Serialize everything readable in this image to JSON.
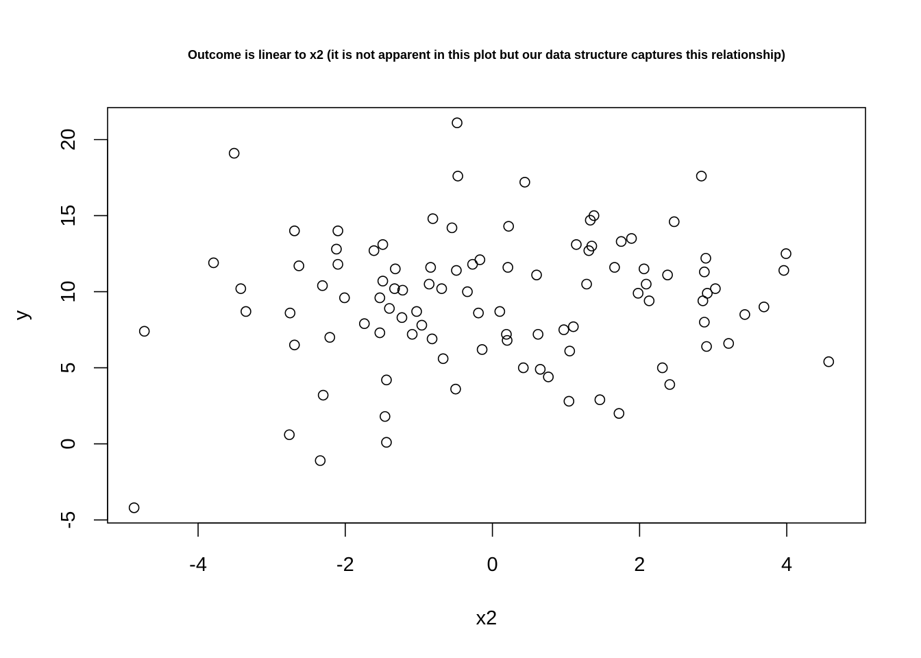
{
  "chart_data": {
    "type": "scatter",
    "title": "Outcome is linear to x2 (it is not apparent in this plot but our data structure captures this relationship)",
    "xlabel": "x2",
    "ylabel": "y",
    "xlim": [
      -5.23,
      5.07
    ],
    "ylim": [
      -5.2,
      22.1
    ],
    "xticks": [
      -4,
      -2,
      0,
      2,
      4
    ],
    "yticks": [
      -5,
      0,
      5,
      10,
      15,
      20
    ],
    "xtick_labels": [
      "-4",
      "-2",
      "0",
      "2",
      "4"
    ],
    "ytick_labels": [
      "-5",
      "0",
      "5",
      "10",
      "15",
      "20"
    ],
    "grid": false,
    "marker": "open-circle",
    "points": [
      [
        -4.87,
        -4.2
      ],
      [
        -4.73,
        7.4
      ],
      [
        -3.79,
        11.9
      ],
      [
        -3.51,
        19.1
      ],
      [
        -3.42,
        10.2
      ],
      [
        -3.35,
        8.7
      ],
      [
        -2.75,
        8.6
      ],
      [
        -2.76,
        0.6
      ],
      [
        -2.69,
        14.0
      ],
      [
        -2.69,
        6.5
      ],
      [
        -2.63,
        11.7
      ],
      [
        -2.31,
        10.4
      ],
      [
        -2.3,
        3.2
      ],
      [
        -2.34,
        -1.1
      ],
      [
        -2.21,
        7.0
      ],
      [
        -2.12,
        12.8
      ],
      [
        -2.1,
        14.0
      ],
      [
        -2.1,
        11.8
      ],
      [
        -2.01,
        9.6
      ],
      [
        -1.74,
        7.9
      ],
      [
        -1.61,
        12.7
      ],
      [
        -1.53,
        9.6
      ],
      [
        -1.53,
        7.3
      ],
      [
        -1.49,
        13.1
      ],
      [
        -1.49,
        10.7
      ],
      [
        -1.46,
        1.8
      ],
      [
        -1.44,
        4.2
      ],
      [
        -1.44,
        0.1
      ],
      [
        -1.4,
        8.9
      ],
      [
        -1.33,
        10.2
      ],
      [
        -1.32,
        11.5
      ],
      [
        -1.23,
        8.3
      ],
      [
        -1.22,
        10.1
      ],
      [
        -1.09,
        7.2
      ],
      [
        -1.03,
        8.7
      ],
      [
        -0.96,
        7.8
      ],
      [
        -0.86,
        10.5
      ],
      [
        -0.84,
        11.6
      ],
      [
        -0.82,
        6.9
      ],
      [
        -0.81,
        14.8
      ],
      [
        -0.69,
        10.2
      ],
      [
        -0.67,
        5.6
      ],
      [
        -0.55,
        14.2
      ],
      [
        -0.5,
        3.6
      ],
      [
        -0.49,
        11.4
      ],
      [
        -0.48,
        21.1
      ],
      [
        -0.47,
        17.6
      ],
      [
        -0.34,
        10.0
      ],
      [
        -0.27,
        11.8
      ],
      [
        -0.19,
        8.6
      ],
      [
        -0.17,
        12.1
      ],
      [
        -0.14,
        6.2
      ],
      [
        0.1,
        8.7
      ],
      [
        0.19,
        7.2
      ],
      [
        0.2,
        6.8
      ],
      [
        0.21,
        11.6
      ],
      [
        0.22,
        14.3
      ],
      [
        0.42,
        5.0
      ],
      [
        0.44,
        17.2
      ],
      [
        0.6,
        11.1
      ],
      [
        0.62,
        7.2
      ],
      [
        0.65,
        4.9
      ],
      [
        0.76,
        4.4
      ],
      [
        0.97,
        7.5
      ],
      [
        1.04,
        2.8
      ],
      [
        1.05,
        6.1
      ],
      [
        1.1,
        7.7
      ],
      [
        1.14,
        13.1
      ],
      [
        1.28,
        10.5
      ],
      [
        1.31,
        12.7
      ],
      [
        1.33,
        14.7
      ],
      [
        1.35,
        13.0
      ],
      [
        1.38,
        15.0
      ],
      [
        1.46,
        2.9
      ],
      [
        1.66,
        11.6
      ],
      [
        1.72,
        2.0
      ],
      [
        1.75,
        13.3
      ],
      [
        1.89,
        13.5
      ],
      [
        1.98,
        9.9
      ],
      [
        2.06,
        11.5
      ],
      [
        2.09,
        10.5
      ],
      [
        2.13,
        9.4
      ],
      [
        2.31,
        5.0
      ],
      [
        2.38,
        11.1
      ],
      [
        2.41,
        3.9
      ],
      [
        2.47,
        14.6
      ],
      [
        2.84,
        17.6
      ],
      [
        2.86,
        9.4
      ],
      [
        2.88,
        11.3
      ],
      [
        2.88,
        8.0
      ],
      [
        2.9,
        12.2
      ],
      [
        2.91,
        6.4
      ],
      [
        2.92,
        9.9
      ],
      [
        3.03,
        10.2
      ],
      [
        3.21,
        6.6
      ],
      [
        3.43,
        8.5
      ],
      [
        3.69,
        9.0
      ],
      [
        3.96,
        11.4
      ],
      [
        3.99,
        12.5
      ],
      [
        4.57,
        5.4
      ]
    ]
  }
}
